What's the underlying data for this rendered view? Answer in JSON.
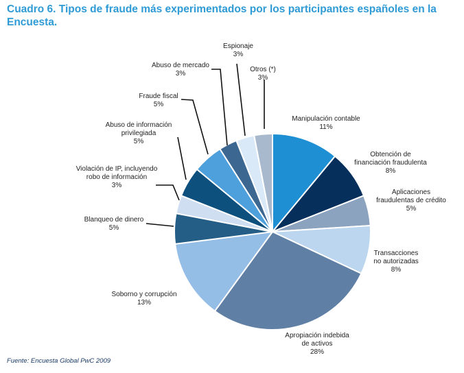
{
  "title": "Cuadro 6. Tipos de fraude más experimentados por los participantes españoles en la Encuesta.",
  "source": "Fuente: Encuesta Global PwC 2009",
  "chart_data": {
    "type": "pie",
    "slices": [
      {
        "label": [
          "Manipulación contable"
        ],
        "pct_text": "11%",
        "value": 11,
        "color": "#1f8fd3"
      },
      {
        "label": [
          "Obtención de",
          "financiación fraudulenta"
        ],
        "pct_text": "8%",
        "value": 8,
        "color": "#062f5c"
      },
      {
        "label": [
          "Aplicaciones",
          "fraudulentas de crédito"
        ],
        "pct_text": "5%",
        "value": 5,
        "color": "#8ca3c0"
      },
      {
        "label": [
          "Transacciones",
          "no autorizadas"
        ],
        "pct_text": "8%",
        "value": 8,
        "color": "#bcd6ef"
      },
      {
        "label": [
          "Apropiación indebida",
          "de activos"
        ],
        "pct_text": "28%",
        "value": 28,
        "color": "#5f7fa5"
      },
      {
        "label": [
          "Soborno y corrupción"
        ],
        "pct_text": "13%",
        "value": 13,
        "color": "#95bee6"
      },
      {
        "label": [
          "Blanqueo de dinero"
        ],
        "pct_text": "5%",
        "value": 5,
        "color": "#245e86"
      },
      {
        "label": [
          "Violación de IP, incluyendo",
          "robo de información"
        ],
        "pct_text": "3%",
        "value": 3,
        "color": "#cfdff1"
      },
      {
        "label": [
          "Abuso de información",
          "privilegiada"
        ],
        "pct_text": "5%",
        "value": 5,
        "color": "#0d4f7d"
      },
      {
        "label": [
          "Fraude fiscal"
        ],
        "pct_text": "5%",
        "value": 5,
        "color": "#4ea0dc"
      },
      {
        "label": [
          "Abuso de mercado"
        ],
        "pct_text": "3%",
        "value": 3,
        "color": "#3b6791"
      },
      {
        "label": [
          "Espionaje"
        ],
        "pct_text": "3%",
        "value": 3,
        "color": "#dae9f8"
      },
      {
        "label": [
          "Otros (*)"
        ],
        "pct_text": "3%",
        "value": 3,
        "color": "#a8b9cd"
      }
    ]
  }
}
